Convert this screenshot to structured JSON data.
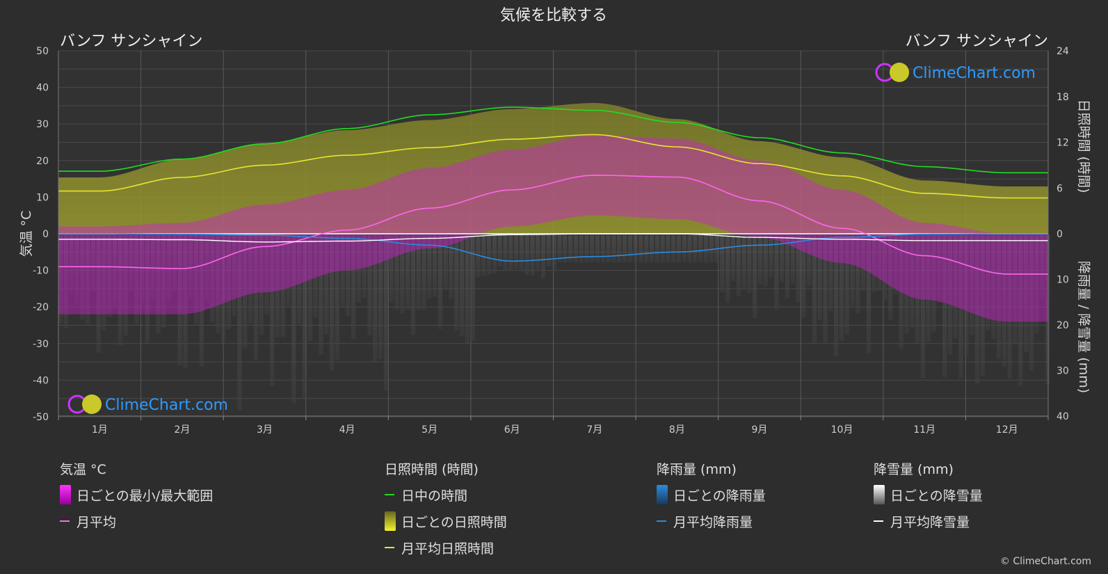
{
  "title": "気候を比較する",
  "location_left": "バンフ サンシャイン",
  "location_right": "バンフ サンシャイン",
  "axes": {
    "left_label": "気温 °C",
    "right_top_label": "日照時間 (時間)",
    "right_bottom_label": "降雨量 / 降雪量 (mm)"
  },
  "watermark": "ClimeChart.com",
  "copyright": "© ClimeChart.com",
  "colors": {
    "background": "#2d2d2d",
    "daylight": "#22dd22",
    "sunshine": "#e6e62e",
    "temp_mean": "#ff66ee",
    "temp_range": "#cc22cc",
    "rain": "#2a8ce0",
    "snow": "#ffffff",
    "grid": "#555555",
    "watermark_text": "#2e9bff"
  },
  "legend": {
    "temperature": {
      "header": "気温 °C",
      "items": [
        "日ごとの最小/最大範囲",
        "月平均"
      ]
    },
    "sunshine": {
      "header": "日照時間 (時間)",
      "items": [
        "日中の時間",
        "日ごとの日照時間",
        "月平均日照時間"
      ]
    },
    "rain": {
      "header": "降雨量 (mm)",
      "items": [
        "日ごとの降雨量",
        "月平均降雨量"
      ]
    },
    "snow": {
      "header": "降雪量 (mm)",
      "items": [
        "日ごとの降雪量",
        "月平均降雪量"
      ]
    }
  },
  "chart_data": {
    "type": "line",
    "categories": [
      "1月",
      "2月",
      "3月",
      "4月",
      "5月",
      "6月",
      "7月",
      "8月",
      "9月",
      "10月",
      "11月",
      "12月"
    ],
    "axes": {
      "temperature_c": {
        "range": [
          -50,
          50
        ],
        "ticks": [
          50,
          40,
          30,
          20,
          10,
          0,
          -10,
          -20,
          -30,
          -40,
          -50
        ]
      },
      "sunshine_h": {
        "range": [
          0,
          24
        ],
        "ticks": [
          24,
          18,
          12,
          6,
          0
        ]
      },
      "precipitation_mm": {
        "range": [
          0,
          40
        ],
        "ticks": [
          0,
          10,
          20,
          30,
          40
        ]
      }
    },
    "series": [
      {
        "name": "日中の時間",
        "axis": "sunshine_h",
        "values": [
          8.2,
          9.8,
          11.8,
          13.8,
          15.6,
          16.6,
          16.2,
          14.6,
          12.6,
          10.6,
          8.8,
          8.0
        ]
      },
      {
        "name": "月平均日照時間",
        "axis": "sunshine_h",
        "values": [
          5.6,
          7.4,
          9.0,
          10.3,
          11.3,
          12.4,
          13.0,
          11.4,
          9.2,
          7.6,
          5.3,
          4.7
        ]
      },
      {
        "name": "月平均",
        "axis": "temperature_c",
        "values": [
          -9.0,
          -9.5,
          -3.5,
          1.0,
          7.0,
          12.0,
          16.0,
          15.5,
          9.0,
          1.5,
          -6.0,
          -11.0
        ]
      },
      {
        "name": "月平均降雨量",
        "axis": "precipitation_mm",
        "values": [
          0.0,
          0.1,
          0.3,
          1.0,
          2.5,
          6.0,
          5.0,
          4.0,
          2.5,
          0.8,
          0.1,
          0.0
        ]
      },
      {
        "name": "月平均降雪量",
        "axis": "precipitation_mm",
        "values": [
          1.2,
          1.3,
          1.8,
          1.6,
          1.0,
          0.2,
          0.0,
          0.0,
          0.8,
          1.2,
          1.5,
          1.5
        ]
      }
    ],
    "daily_temp_range_monthly": {
      "min": [
        -22,
        -22,
        -16,
        -10,
        -4,
        2,
        5,
        4,
        -1,
        -8,
        -18,
        -24
      ],
      "max": [
        2,
        3,
        8,
        12,
        18,
        23,
        27,
        26,
        20,
        12,
        3,
        0
      ]
    },
    "grid": true
  }
}
